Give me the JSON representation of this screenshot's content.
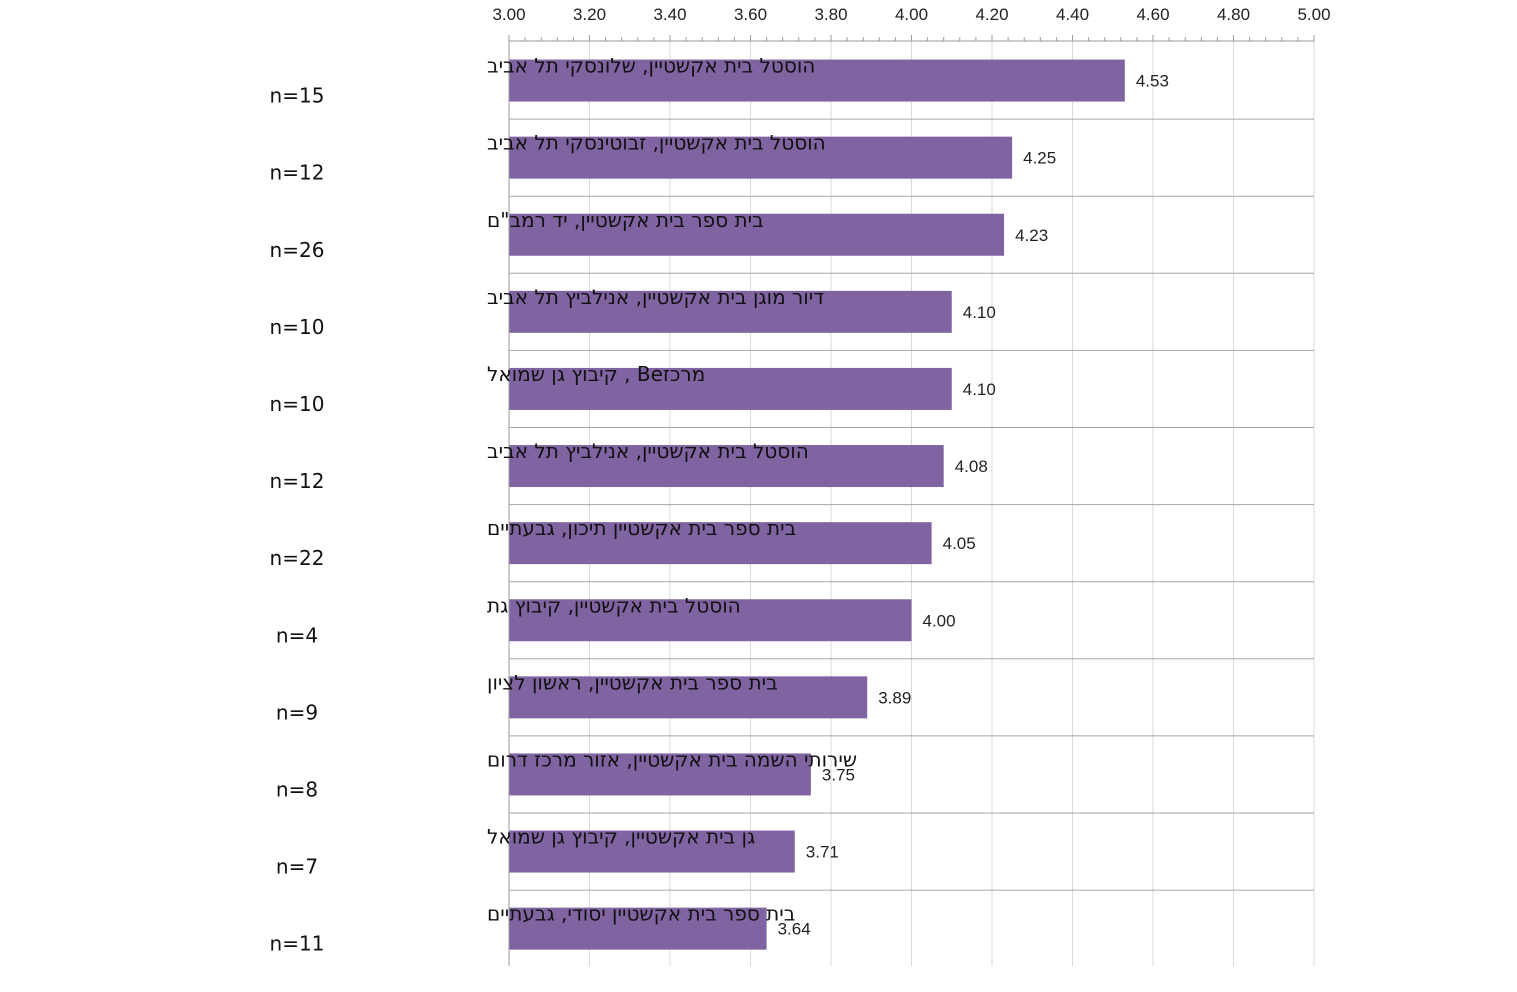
{
  "chart_data": {
    "type": "bar",
    "orientation": "horizontal",
    "xlim": [
      3.0,
      5.0
    ],
    "x_ticks": [
      "3.00",
      "3.20",
      "3.40",
      "3.60",
      "3.80",
      "4.00",
      "4.20",
      "4.40",
      "4.60",
      "4.80",
      "5.00"
    ],
    "x_tick_values": [
      3.0,
      3.2,
      3.4,
      3.6,
      3.8,
      4.0,
      4.2,
      4.4,
      4.6,
      4.8,
      5.0
    ],
    "x_axis_position": "top",
    "grid": true,
    "bar_color": "#8064a2",
    "categories": [
      {
        "label": "הוסטל בית אקשטיין, שלונסקי תל אביב",
        "n": "n=15",
        "value": 4.53,
        "value_label": "4.53"
      },
      {
        "label": "הוסטל בית אקשטיין, זבוטינסקי תל אביב",
        "n": "n=12",
        "value": 4.25,
        "value_label": "4.25"
      },
      {
        "label": "בית ספר בית אקשטיין, יד רמב\"ם",
        "n": "n=26",
        "value": 4.23,
        "value_label": "4.23"
      },
      {
        "label": "דיור מוגן בית אקשטיין, אנילביץ תל אביב",
        "n": "n=10",
        "value": 4.1,
        "value_label": "4.10"
      },
      {
        "label": "מרכזBe , קיבוץ גן שמואל",
        "n": "n=10",
        "value": 4.1,
        "value_label": "4.10"
      },
      {
        "label": "הוסטל בית אקשטיין, אנילביץ תל אביב",
        "n": "n=12",
        "value": 4.08,
        "value_label": "4.08"
      },
      {
        "label": "בית ספר בית אקשטיין תיכון, גבעתיים",
        "n": "n=22",
        "value": 4.05,
        "value_label": "4.05"
      },
      {
        "label": "הוסטל בית אקשטיין, קיבוץ גת",
        "n": "n=4",
        "value": 4.0,
        "value_label": "4.00"
      },
      {
        "label": "בית ספר בית אקשטיין, ראשון לציון",
        "n": "n=9",
        "value": 3.89,
        "value_label": "3.89"
      },
      {
        "label": "שירותי השמה בית אקשטיין, אזור מרכז דרום",
        "n": "n=8",
        "value": 3.75,
        "value_label": "3.75"
      },
      {
        "label": "גן בית אקשטיין, קיבוץ גן שמואל",
        "n": "n=7",
        "value": 3.71,
        "value_label": "3.71"
      },
      {
        "label": "בית ספר בית אקשטיין יסודי, גבעתיים",
        "n": "n=11",
        "value": 3.64,
        "value_label": "3.64"
      }
    ]
  }
}
